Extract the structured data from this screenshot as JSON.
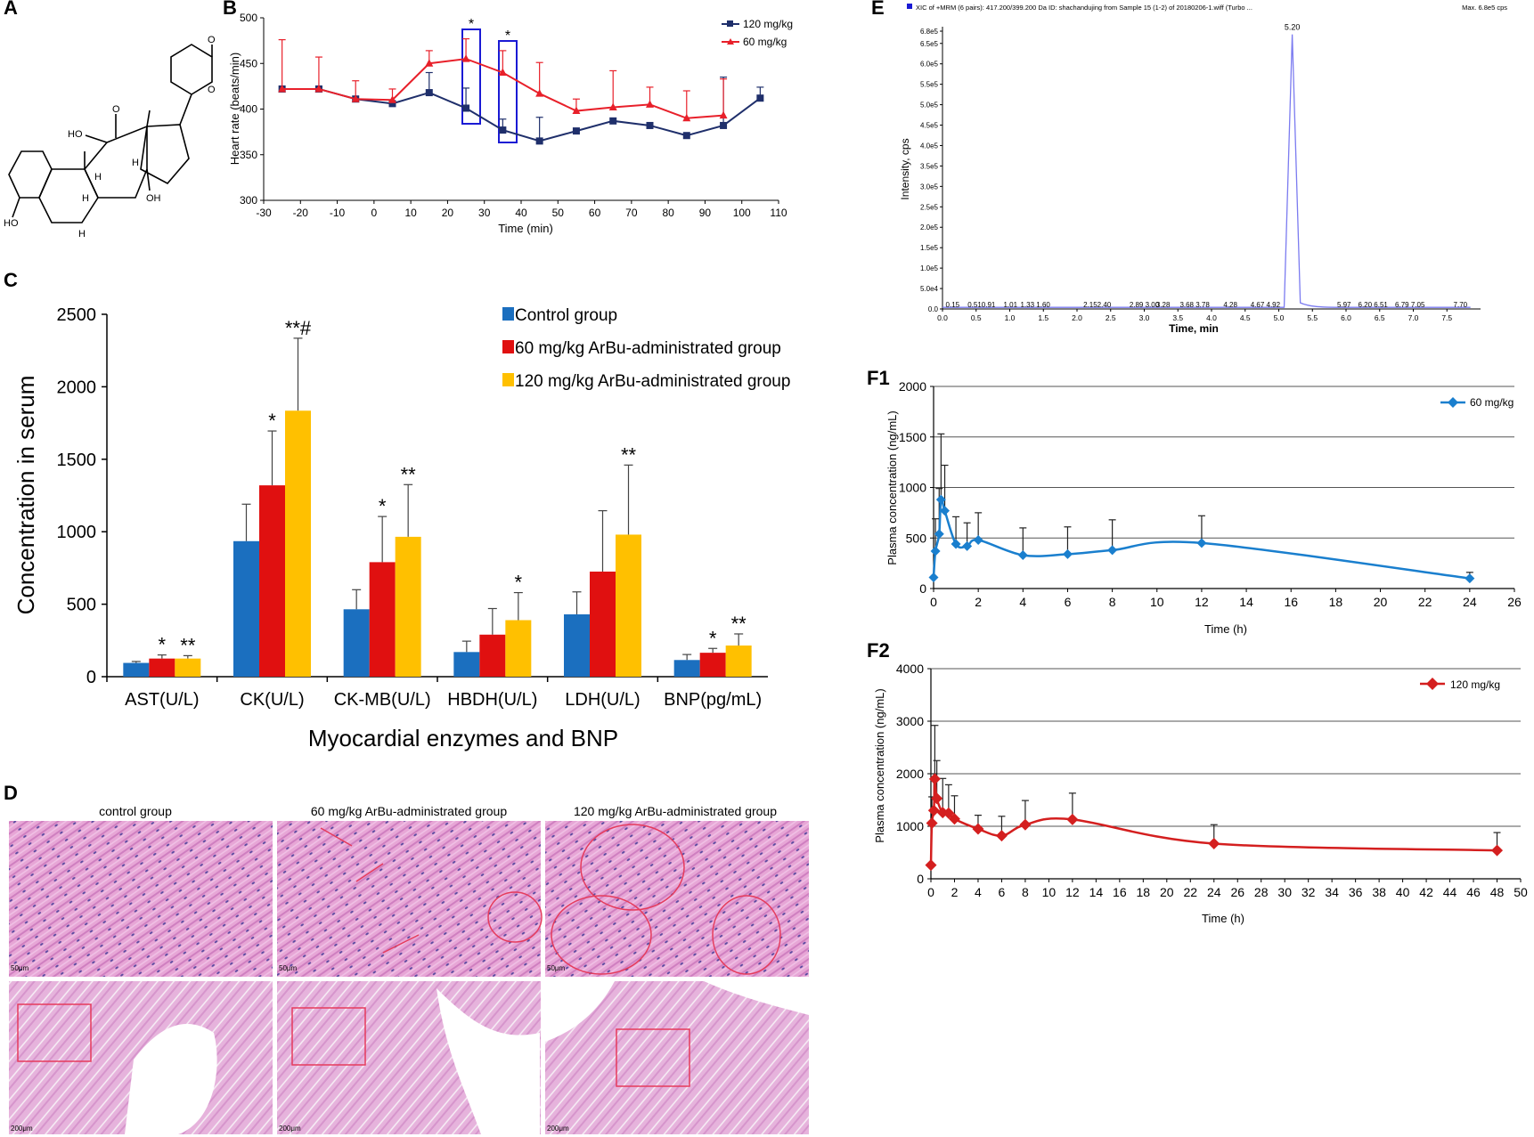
{
  "panels": {
    "A": "A",
    "B": "B",
    "C": "C",
    "D": "D",
    "E": "E",
    "F1": "F1",
    "F2": "F2"
  },
  "structure": {
    "labels": [
      "O",
      "O",
      "O",
      "HO",
      "H",
      "H",
      "H",
      "OH",
      "HO",
      "H"
    ]
  },
  "chart_data": [
    {
      "id": "B",
      "type": "line",
      "xlabel": "Time (min)",
      "ylabel": "Heart rate (beats/min)",
      "xlim": [
        -30,
        110
      ],
      "ylim": [
        300,
        500
      ],
      "xticks": [
        "-30",
        "-20",
        "-10",
        "0",
        "10",
        "20",
        "30",
        "40",
        "50",
        "60",
        "70",
        "80",
        "90",
        "100",
        "110"
      ],
      "yticks": [
        "300",
        "350",
        "400",
        "450",
        "500"
      ],
      "legend": [
        "120 mg/kg",
        "60 mg/kg"
      ],
      "series": [
        {
          "name": "120 mg/kg",
          "color": "#1f2f6b",
          "x": [
            -25,
            -15,
            -5,
            5,
            15,
            25,
            35,
            45,
            55,
            65,
            75,
            85,
            95,
            105
          ],
          "y": [
            422,
            422,
            411,
            406,
            418,
            401,
            377,
            365,
            376,
            387,
            382,
            371,
            382,
            412
          ],
          "err": [
            0,
            0,
            0,
            0,
            22,
            22,
            12,
            26,
            0,
            0,
            0,
            0,
            53,
            12
          ]
        },
        {
          "name": "60 mg/kg",
          "color": "#e8202a",
          "x": [
            -25,
            -15,
            -5,
            5,
            15,
            25,
            35,
            45,
            55,
            65,
            75,
            85,
            95
          ],
          "y": [
            422,
            422,
            411,
            410,
            450,
            455,
            440,
            417,
            398,
            402,
            405,
            390,
            393
          ],
          "err": [
            54,
            35,
            20,
            12,
            14,
            22,
            24,
            34,
            13,
            40,
            19,
            30,
            40
          ]
        }
      ],
      "annotations": [
        "*",
        "*"
      ]
    },
    {
      "id": "C",
      "type": "bar",
      "xlabel": "Myocardial enzymes and BNP",
      "ylabel": "Concentration  in serum",
      "ylim": [
        0,
        2500
      ],
      "yticks": [
        "0",
        "500",
        "1000",
        "1500",
        "2000",
        "2500"
      ],
      "categories": [
        "AST(U/L)",
        "CK(U/L)",
        "CK-MB(U/L)",
        "HBDH(U/L)",
        "LDH(U/L)",
        "BNP(pg/mL)"
      ],
      "series": [
        {
          "name": "Control group",
          "color": "#1b6fbf",
          "values": [
            95,
            935,
            465,
            170,
            430,
            115
          ],
          "err": [
            10,
            255,
            135,
            75,
            155,
            38
          ]
        },
        {
          "name": "60 mg/kg ArBu-administrated group",
          "color": "#e01010",
          "values": [
            125,
            1320,
            790,
            290,
            725,
            165
          ],
          "err": [
            25,
            375,
            315,
            180,
            420,
            30
          ]
        },
        {
          "name": "120 mg/kg ArBu-administrated group",
          "color": "#ffc000",
          "values": [
            125,
            1835,
            965,
            390,
            980,
            215
          ],
          "err": [
            20,
            500,
            360,
            190,
            480,
            80
          ]
        }
      ],
      "marks": [
        [
          "",
          "*",
          "**"
        ],
        [
          "",
          "*",
          "**#"
        ],
        [
          "",
          "*",
          "**"
        ],
        [
          "",
          "",
          "*"
        ],
        [
          "",
          "",
          "**"
        ],
        [
          "",
          "*",
          "**"
        ]
      ]
    },
    {
      "id": "E",
      "type": "line",
      "title": "XIC of +MRM (6 pairs): 417.200/399.200 Da ID: shachandujing from Sample 15 (1-2) of 20180206-1.wiff (Turbo ...",
      "max_label": "Max. 6.8e5 cps",
      "xlabel": "Time, min",
      "ylabel": "Intensity, cps",
      "xlim": [
        0,
        8.0
      ],
      "ylim": [
        0,
        680000
      ],
      "xticks": [
        "0.0",
        "0.5",
        "1.0",
        "1.5",
        "2.0",
        "2.5",
        "3.0",
        "3.5",
        "4.0",
        "4.5",
        "5.0",
        "5.5",
        "6.0",
        "6.5",
        "7.0",
        "7.5"
      ],
      "yticks": [
        "0.0",
        "5.0e4",
        "1.0e5",
        "1.5e5",
        "2.0e5",
        "2.5e5",
        "3.0e5",
        "3.5e5",
        "4.0e5",
        "4.5e5",
        "5.0e5",
        "5.5e5",
        "6.0e5",
        "6.5e5",
        "6.8e5"
      ],
      "peak_label": "5.20",
      "small_peaks": [
        {
          "t": 0.15,
          "label": "0.15"
        },
        {
          "t": 0.58,
          "label": "0.510.91"
        },
        {
          "t": 1.01,
          "label": "1.01"
        },
        {
          "t": 1.38,
          "label": "1.33 1.60"
        },
        {
          "t": 2.3,
          "label": "2.152.40"
        },
        {
          "t": 3.0,
          "label": "2.89 3.00"
        },
        {
          "t": 3.28,
          "label": "3.28"
        },
        {
          "t": 3.75,
          "label": "3.68 3.78"
        },
        {
          "t": 4.28,
          "label": "4.28"
        },
        {
          "t": 4.8,
          "label": "4.67 4.92"
        },
        {
          "t": 5.97,
          "label": "5.97"
        },
        {
          "t": 6.4,
          "label": "6.20 6.51"
        },
        {
          "t": 6.95,
          "label": "6.79 7.05"
        },
        {
          "t": 7.7,
          "label": "7.70"
        }
      ],
      "color": "#7b7bf0"
    },
    {
      "id": "F1",
      "type": "line",
      "xlabel": "Time (h)",
      "ylabel": "Plasma concentration (ng/mL)",
      "xlim": [
        0,
        26
      ],
      "ylim": [
        0,
        2000
      ],
      "xticks": [
        "0",
        "2",
        "4",
        "6",
        "8",
        "10",
        "12",
        "14",
        "16",
        "18",
        "20",
        "22",
        "24",
        "26"
      ],
      "yticks": [
        "0",
        "500",
        "1000",
        "1500",
        "2000"
      ],
      "series": [
        {
          "name": "60 mg/kg",
          "color": "#1a7fce",
          "x": [
            0,
            0.083,
            0.25,
            0.333,
            0.5,
            1,
            1.5,
            2,
            4,
            6,
            8,
            12,
            24
          ],
          "y": [
            110,
            370,
            540,
            880,
            770,
            440,
            420,
            480,
            330,
            340,
            380,
            450,
            100
          ],
          "err": [
            0,
            320,
            450,
            650,
            450,
            270,
            230,
            270,
            270,
            270,
            300,
            270,
            60
          ]
        }
      ]
    },
    {
      "id": "F2",
      "type": "line",
      "xlabel": "Time (h)",
      "ylabel": "Plasma concentration (ng/mL)",
      "xlim": [
        0,
        50
      ],
      "ylim": [
        0,
        4000
      ],
      "xticks": [
        "0",
        "2",
        "4",
        "6",
        "8",
        "10",
        "12",
        "14",
        "16",
        "18",
        "20",
        "22",
        "24",
        "26",
        "28",
        "30",
        "32",
        "34",
        "36",
        "38",
        "40",
        "42",
        "44",
        "46",
        "48",
        "50"
      ],
      "yticks": [
        "0",
        "1000",
        "2000",
        "3000",
        "4000"
      ],
      "series": [
        {
          "name": "120 mg/kg",
          "color": "#d41f1f",
          "x": [
            0,
            0.083,
            0.25,
            0.333,
            0.5,
            1,
            1.5,
            2,
            4,
            6,
            8,
            12,
            24,
            48
          ],
          "y": [
            260,
            1060,
            1300,
            1900,
            1530,
            1260,
            1250,
            1140,
            950,
            820,
            1030,
            1130,
            670,
            540
          ],
          "err": [
            0,
            500,
            700,
            1020,
            720,
            650,
            540,
            440,
            260,
            370,
            460,
            500,
            360,
            340
          ]
        }
      ]
    }
  ],
  "histology": {
    "titles": [
      "control group",
      "60 mg/kg ArBu-administrated group",
      "120 mg/kg ArBu-administrated group"
    ],
    "scale_top": "50μm",
    "scale_bottom": "200μm"
  }
}
